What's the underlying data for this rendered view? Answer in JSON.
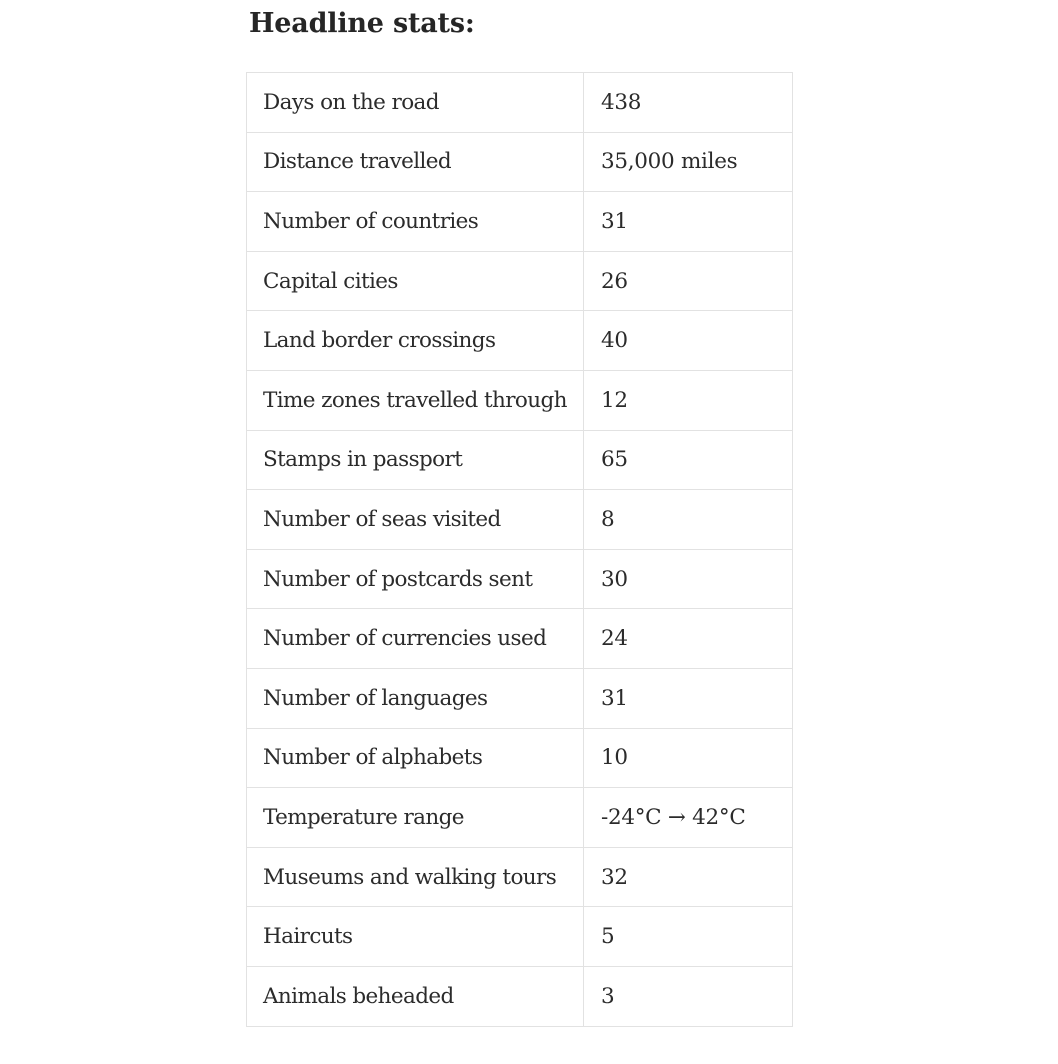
{
  "heading": "Headline stats:",
  "rows": [
    {
      "label": "Days on the road",
      "value": "438"
    },
    {
      "label": "Distance travelled",
      "value": "35,000 miles"
    },
    {
      "label": "Number of countries",
      "value": "31"
    },
    {
      "label": "Capital cities",
      "value": "26"
    },
    {
      "label": "Land border crossings",
      "value": "40"
    },
    {
      "label": "Time zones travelled through",
      "value": "12"
    },
    {
      "label": "Stamps in passport",
      "value": "65"
    },
    {
      "label": "Number of seas visited",
      "value": "8"
    },
    {
      "label": "Number of postcards sent",
      "value": "30"
    },
    {
      "label": "Number of currencies used",
      "value": "24"
    },
    {
      "label": "Number of languages",
      "value": "31"
    },
    {
      "label": "Number of alphabets",
      "value": "10"
    },
    {
      "label": "Temperature range",
      "value": "-24°C → 42°C"
    },
    {
      "label": "Museums and walking tours",
      "value": "32"
    },
    {
      "label": "Haircuts",
      "value": "5"
    },
    {
      "label": "Animals beheaded",
      "value": "3"
    }
  ]
}
